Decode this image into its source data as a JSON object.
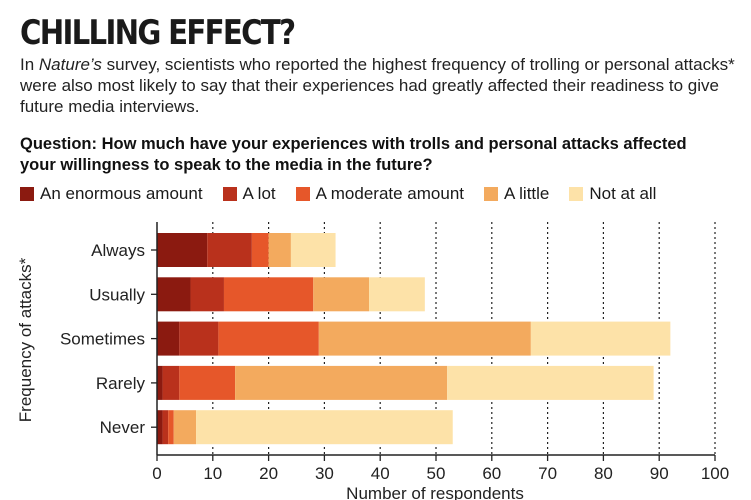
{
  "header": {
    "title": "CHILLING EFFECT?",
    "intro_em": "Nature’s",
    "intro_rest": " survey, scientists who reported the highest frequency of trolling or personal attacks* were also most likely to say that their experiences had greatly affected their readiness to give future media interviews.",
    "intro_prefix": "In ",
    "question": "Question: How much have your experiences with trolls and personal attacks affected your willingness to speak to the media in the future?"
  },
  "colors": {
    "An enormous amount": "#8b1a10",
    "A lot": "#b9311c",
    "A moderate amount": "#e6572a",
    "A little": "#f3aa5e",
    "Not at all": "#fde2a8"
  },
  "chart_data": {
    "type": "bar",
    "orientation": "horizontal",
    "stacked": true,
    "categories": [
      "Always",
      "Usually",
      "Sometimes",
      "Rarely",
      "Never"
    ],
    "series": [
      {
        "name": "An enormous amount",
        "values": [
          9,
          6,
          4,
          1,
          1
        ]
      },
      {
        "name": "A lot",
        "values": [
          8,
          6,
          7,
          3,
          1
        ]
      },
      {
        "name": "A moderate amount",
        "values": [
          3,
          16,
          18,
          10,
          1
        ]
      },
      {
        "name": "A little",
        "values": [
          4,
          10,
          38,
          38,
          4
        ]
      },
      {
        "name": "Not at all",
        "values": [
          8,
          10,
          25,
          37,
          46
        ]
      }
    ],
    "xlabel": "Number of respondents",
    "ylabel": "Frequency of attacks*",
    "xlim": [
      0,
      100
    ],
    "xticks": [
      0,
      10,
      20,
      30,
      40,
      50,
      60,
      70,
      80,
      90,
      100
    ],
    "grid": "vertical dotted",
    "legend_position": "top"
  }
}
